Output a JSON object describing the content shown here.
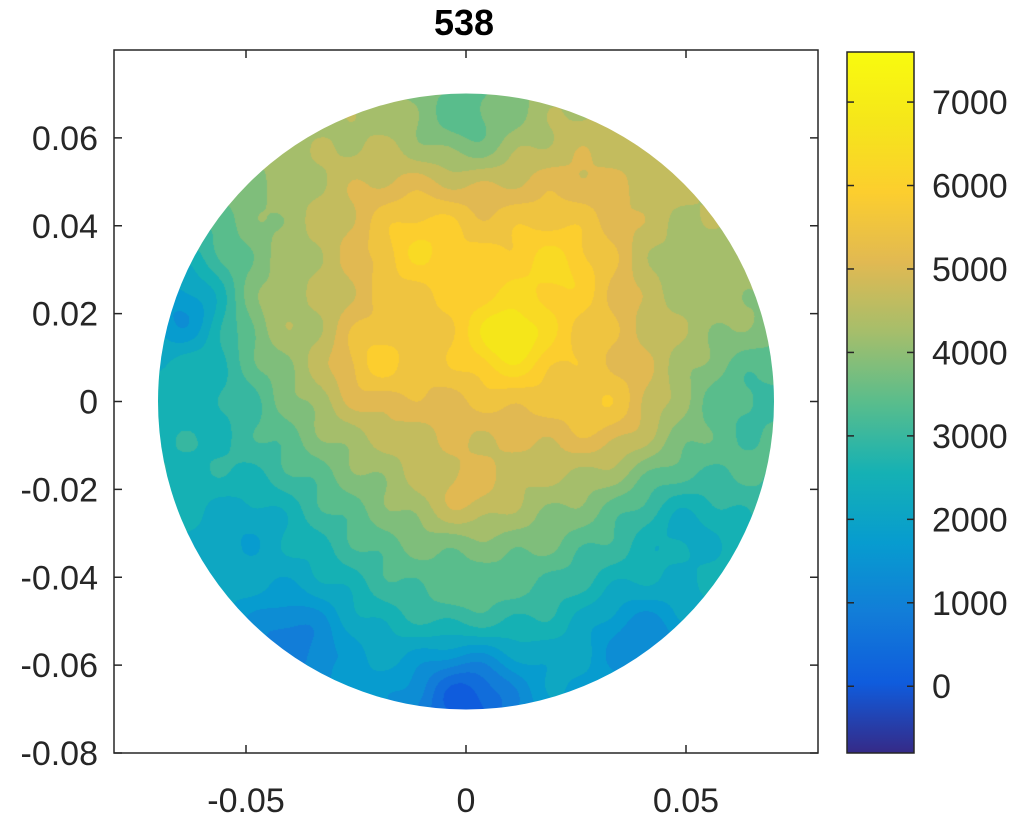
{
  "chart_data": {
    "type": "heatmap",
    "title": "538",
    "xlabel": "",
    "ylabel": "",
    "xlim": [
      -0.08,
      0.08
    ],
    "ylim": [
      -0.08,
      0.08
    ],
    "x_ticks": [
      -0.05,
      0,
      0.05
    ],
    "x_tick_labels": [
      "-0.05",
      "0",
      "0.05"
    ],
    "y_ticks": [
      0.06,
      0.04,
      0.02,
      0,
      -0.02,
      -0.04,
      -0.06,
      -0.08
    ],
    "y_tick_labels": [
      "0.06",
      "0.04",
      "0.02",
      "0",
      "-0.02",
      "-0.04",
      "-0.06",
      "-0.08"
    ],
    "domain": {
      "shape": "circle",
      "center": [
        0,
        0
      ],
      "radius": 0.07
    },
    "colorbar": {
      "range": [
        -800,
        7600
      ],
      "ticks": [
        0,
        1000,
        2000,
        3000,
        4000,
        5000,
        6000,
        7000
      ],
      "tick_labels": [
        "0",
        "1000",
        "2000",
        "3000",
        "4000",
        "5000",
        "6000",
        "7000"
      ],
      "colormap": "parula"
    },
    "field_samples": [
      {
        "x": 0.01,
        "y": 0.015,
        "value": 7300
      },
      {
        "x": -0.01,
        "y": 0.035,
        "value": 6300
      },
      {
        "x": 0.02,
        "y": 0.03,
        "value": 6400
      },
      {
        "x": -0.02,
        "y": 0.01,
        "value": 6000
      },
      {
        "x": 0.03,
        "y": 0.0,
        "value": 5800
      },
      {
        "x": 0.0,
        "y": -0.02,
        "value": 5200
      },
      {
        "x": -0.04,
        "y": 0.02,
        "value": 4400
      },
      {
        "x": 0.05,
        "y": 0.03,
        "value": 4200
      },
      {
        "x": -0.06,
        "y": 0.0,
        "value": 2500
      },
      {
        "x": 0.065,
        "y": 0.0,
        "value": 3000
      },
      {
        "x": 0.0,
        "y": 0.065,
        "value": 3300
      },
      {
        "x": -0.065,
        "y": 0.02,
        "value": 1300
      },
      {
        "x": 0.0,
        "y": -0.04,
        "value": 3500
      },
      {
        "x": 0.0,
        "y": -0.068,
        "value": -200
      },
      {
        "x": -0.04,
        "y": -0.055,
        "value": 700
      },
      {
        "x": 0.04,
        "y": -0.055,
        "value": 1000
      },
      {
        "x": -0.05,
        "y": -0.03,
        "value": 1900
      },
      {
        "x": 0.05,
        "y": -0.03,
        "value": 2100
      }
    ]
  }
}
